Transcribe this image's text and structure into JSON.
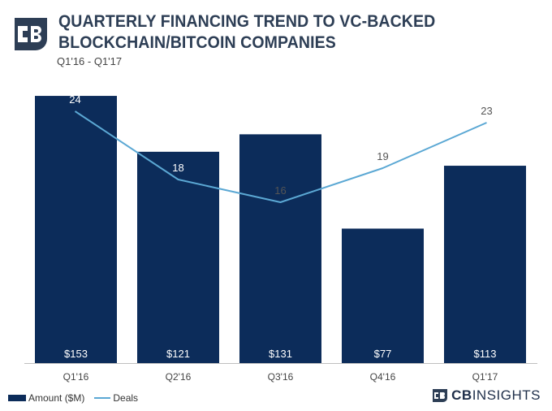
{
  "header": {
    "title_line1": "QUARTERLY FINANCING TREND TO VC-BACKED",
    "title_line2": "BLOCKCHAIN/BITCOIN COMPANIES",
    "subtitle": "Q1'16 - Q1'17"
  },
  "legend": {
    "amount_label": "Amount ($M)",
    "deals_label": "Deals"
  },
  "brand": {
    "bold": "CB",
    "rest": "INSIGHTS"
  },
  "colors": {
    "bar": "#0c2c5a",
    "line": "#5ba8d4",
    "logo": "#2d3e55"
  },
  "chart_data": {
    "type": "bar",
    "categories": [
      "Q1'16",
      "Q2'16",
      "Q3'16",
      "Q4'16",
      "Q1'17"
    ],
    "series": [
      {
        "name": "Amount ($M)",
        "type": "bar",
        "values": [
          153,
          121,
          131,
          77,
          113
        ],
        "labels": [
          "$153",
          "$121",
          "$131",
          "$77",
          "$113"
        ]
      },
      {
        "name": "Deals",
        "type": "line",
        "values": [
          24,
          18,
          16,
          19,
          23
        ],
        "labels": [
          "24",
          "18",
          "16",
          "19",
          "23"
        ]
      }
    ],
    "legend_position": "bottom-left",
    "grid": false
  }
}
